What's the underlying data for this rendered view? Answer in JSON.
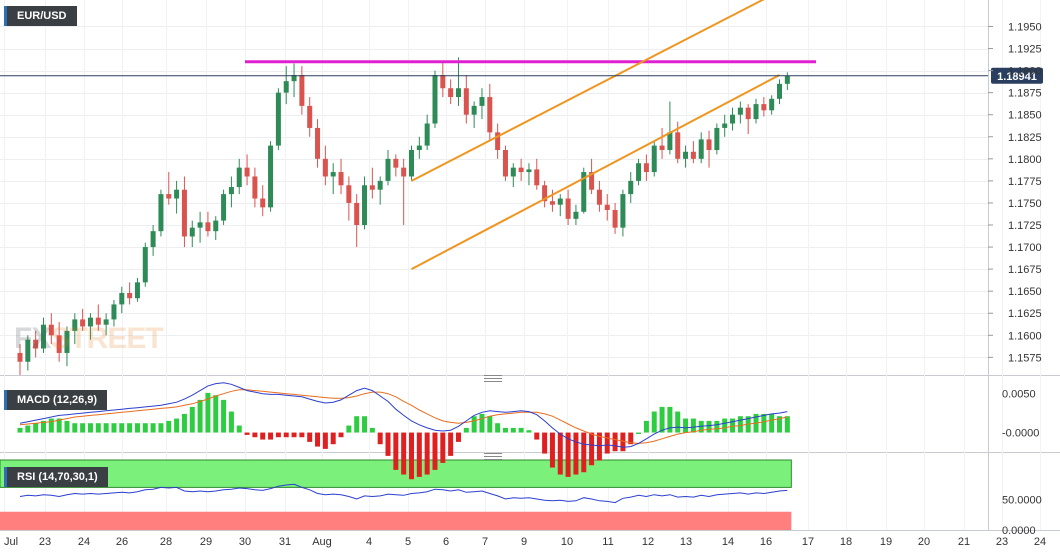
{
  "chart_data": [
    {
      "type": "candlestick",
      "title": "EUR/USD",
      "x_tick_labels": [
        "Jul",
        "23",
        "24",
        "26",
        "28",
        "29",
        "30",
        "31",
        "Aug",
        "4",
        "5",
        "6",
        "7",
        "9",
        "10",
        "11",
        "12",
        "13",
        "14",
        "16",
        "17",
        "18",
        "19",
        "20",
        "21",
        "23",
        "24"
      ],
      "y_ticks": [
        "1.1950",
        "1.1925",
        "1.1900",
        "1.1875",
        "1.1850",
        "1.1825",
        "1.1800",
        "1.1775",
        "1.1750",
        "1.1725",
        "1.1700",
        "1.1675",
        "1.1650",
        "1.1625",
        "1.1600",
        "1.1575"
      ],
      "ylim": [
        1.1555,
        1.198
      ],
      "last_price": "1.18941",
      "last_price_value": 1.18941,
      "grid": true,
      "colors": {
        "up": "#2e8b57",
        "down": "#d9534f",
        "resistance": "#e020d0",
        "channel": "#f0951f",
        "last_price_line": "#2a3f5f",
        "last_price_badge": "#2a3f5f"
      },
      "ohlc": [
        [
          1.158,
          1.159,
          1.1555,
          1.157
        ],
        [
          1.157,
          1.16,
          1.156,
          1.1595
        ],
        [
          1.1595,
          1.1605,
          1.1575,
          1.1585
        ],
        [
          1.1585,
          1.162,
          1.158,
          1.1612
        ],
        [
          1.1612,
          1.1625,
          1.159,
          1.16
        ],
        [
          1.16,
          1.1615,
          1.157,
          1.158
        ],
        [
          1.158,
          1.161,
          1.1565,
          1.1605
        ],
        [
          1.1605,
          1.1625,
          1.159,
          1.1618
        ],
        [
          1.1618,
          1.163,
          1.1605,
          1.161
        ],
        [
          1.161,
          1.1625,
          1.1595,
          1.162
        ],
        [
          1.162,
          1.1635,
          1.1605,
          1.1612
        ],
        [
          1.1612,
          1.1625,
          1.16,
          1.1618
        ],
        [
          1.1618,
          1.164,
          1.161,
          1.1635
        ],
        [
          1.1635,
          1.1655,
          1.1625,
          1.1648
        ],
        [
          1.1648,
          1.166,
          1.1635,
          1.1642
        ],
        [
          1.1642,
          1.1665,
          1.1638,
          1.166
        ],
        [
          1.166,
          1.1705,
          1.1655,
          1.17
        ],
        [
          1.17,
          1.1725,
          1.169,
          1.1718
        ],
        [
          1.1718,
          1.1765,
          1.1712,
          1.176
        ],
        [
          1.176,
          1.1785,
          1.1748,
          1.1755
        ],
        [
          1.1755,
          1.1775,
          1.1738,
          1.1765
        ],
        [
          1.1765,
          1.178,
          1.17,
          1.1712
        ],
        [
          1.1712,
          1.173,
          1.17,
          1.1722
        ],
        [
          1.1722,
          1.174,
          1.1705,
          1.1728
        ],
        [
          1.1728,
          1.174,
          1.1712,
          1.1718
        ],
        [
          1.1718,
          1.1735,
          1.1708,
          1.173
        ],
        [
          1.173,
          1.1765,
          1.1725,
          1.176
        ],
        [
          1.176,
          1.178,
          1.1745,
          1.1768
        ],
        [
          1.1768,
          1.18,
          1.176,
          1.179
        ],
        [
          1.179,
          1.1805,
          1.177,
          1.178
        ],
        [
          1.178,
          1.179,
          1.1745,
          1.1755
        ],
        [
          1.1755,
          1.177,
          1.1735,
          1.1745
        ],
        [
          1.1745,
          1.182,
          1.174,
          1.1815
        ],
        [
          1.1815,
          1.188,
          1.181,
          1.1875
        ],
        [
          1.1875,
          1.1905,
          1.1862,
          1.1888
        ],
        [
          1.1888,
          1.1908,
          1.187,
          1.1895
        ],
        [
          1.1895,
          1.1905,
          1.185,
          1.186
        ],
        [
          1.186,
          1.187,
          1.1825,
          1.1835
        ],
        [
          1.1835,
          1.1845,
          1.179,
          1.18
        ],
        [
          1.18,
          1.1815,
          1.177,
          1.178
        ],
        [
          1.178,
          1.1795,
          1.176,
          1.1785
        ],
        [
          1.1785,
          1.18,
          1.176,
          1.177
        ],
        [
          1.177,
          1.178,
          1.173,
          1.175
        ],
        [
          1.175,
          1.176,
          1.17,
          1.1725
        ],
        [
          1.1725,
          1.178,
          1.172,
          1.177
        ],
        [
          1.177,
          1.179,
          1.1755,
          1.1765
        ],
        [
          1.1765,
          1.178,
          1.1748,
          1.1775
        ],
        [
          1.1775,
          1.181,
          1.177,
          1.18
        ],
        [
          1.18,
          1.1805,
          1.178,
          1.179
        ],
        [
          1.179,
          1.18,
          1.1725,
          1.178
        ],
        [
          1.178,
          1.1815,
          1.1775,
          1.181
        ],
        [
          1.181,
          1.1825,
          1.18,
          1.1815
        ],
        [
          1.1815,
          1.185,
          1.181,
          1.184
        ],
        [
          1.184,
          1.19,
          1.1835,
          1.1895
        ],
        [
          1.1895,
          1.191,
          1.187,
          1.188
        ],
        [
          1.188,
          1.189,
          1.1862,
          1.187
        ],
        [
          1.187,
          1.1915,
          1.186,
          1.188
        ],
        [
          1.188,
          1.1895,
          1.184,
          1.185
        ],
        [
          1.185,
          1.1865,
          1.1835,
          1.186
        ],
        [
          1.186,
          1.188,
          1.1845,
          1.187
        ],
        [
          1.187,
          1.1885,
          1.182,
          1.183
        ],
        [
          1.183,
          1.184,
          1.18,
          1.181
        ],
        [
          1.181,
          1.1815,
          1.1775,
          1.178
        ],
        [
          1.178,
          1.1795,
          1.1768,
          1.179
        ],
        [
          1.179,
          1.18,
          1.1775,
          1.1785
        ],
        [
          1.1785,
          1.1795,
          1.177,
          1.1788
        ],
        [
          1.1788,
          1.18,
          1.1765,
          1.177
        ],
        [
          1.177,
          1.1775,
          1.1745,
          1.1752
        ],
        [
          1.1752,
          1.1765,
          1.174,
          1.1748
        ],
        [
          1.1748,
          1.176,
          1.1735,
          1.1755
        ],
        [
          1.1755,
          1.1765,
          1.1725,
          1.1732
        ],
        [
          1.1732,
          1.1748,
          1.1725,
          1.174
        ],
        [
          1.174,
          1.179,
          1.1738,
          1.1785
        ],
        [
          1.1785,
          1.18,
          1.176,
          1.1765
        ],
        [
          1.1765,
          1.1775,
          1.174,
          1.1748
        ],
        [
          1.1748,
          1.176,
          1.173,
          1.1742
        ],
        [
          1.1742,
          1.175,
          1.1715,
          1.1722
        ],
        [
          1.1722,
          1.1765,
          1.1712,
          1.176
        ],
        [
          1.176,
          1.1785,
          1.175,
          1.1775
        ],
        [
          1.1775,
          1.18,
          1.177,
          1.1795
        ],
        [
          1.1795,
          1.1805,
          1.1775,
          1.1785
        ],
        [
          1.1785,
          1.182,
          1.178,
          1.1815
        ],
        [
          1.1815,
          1.1835,
          1.18,
          1.181
        ],
        [
          1.181,
          1.1865,
          1.1805,
          1.183
        ],
        [
          1.183,
          1.1842,
          1.1795,
          1.18
        ],
        [
          1.18,
          1.1815,
          1.179,
          1.1808
        ],
        [
          1.1808,
          1.182,
          1.1795,
          1.18
        ],
        [
          1.18,
          1.183,
          1.1795,
          1.1822
        ],
        [
          1.1822,
          1.1832,
          1.179,
          1.181
        ],
        [
          1.181,
          1.184,
          1.1805,
          1.1835
        ],
        [
          1.1835,
          1.185,
          1.1825,
          1.184
        ],
        [
          1.184,
          1.1858,
          1.1832,
          1.185
        ],
        [
          1.185,
          1.1865,
          1.184,
          1.1858
        ],
        [
          1.1858,
          1.1862,
          1.1828,
          1.1845
        ],
        [
          1.1845,
          1.1868,
          1.184,
          1.1862
        ],
        [
          1.1862,
          1.187,
          1.1848,
          1.1855
        ],
        [
          1.1855,
          1.1872,
          1.185,
          1.1868
        ],
        [
          1.1868,
          1.189,
          1.1862,
          1.1885
        ],
        [
          1.1885,
          1.1898,
          1.1878,
          1.1894
        ]
      ],
      "resistance_level": 1.191,
      "channel_upper": [
        [
          50,
          1.1775
        ],
        [
          97,
          1.199
        ]
      ],
      "channel_lower": [
        [
          50,
          1.1675
        ],
        [
          97,
          1.1895
        ]
      ],
      "x_overlay_end": 120
    },
    {
      "type": "macd",
      "title": "MACD (12,26,9)",
      "y_ticks": [
        "0.0050",
        "-0.0000"
      ],
      "ylim": [
        -0.0025,
        0.0065
      ],
      "colors": {
        "macd": "#2b3fcf",
        "signal": "#e86d1f",
        "hist_up": "#2ecc40",
        "hist_down": "#e02020"
      },
      "macd": [
        0.0012,
        0.0014,
        0.0016,
        0.0018,
        0.002,
        0.0022,
        0.0023,
        0.0024,
        0.0025,
        0.0026,
        0.0027,
        0.0028,
        0.0029,
        0.003,
        0.0031,
        0.0032,
        0.0033,
        0.0034,
        0.0035,
        0.0037,
        0.0039,
        0.0043,
        0.0048,
        0.0054,
        0.006,
        0.0063,
        0.0064,
        0.0062,
        0.0058,
        0.0054,
        0.0052,
        0.005,
        0.0049,
        0.0049,
        0.0048,
        0.0047,
        0.0046,
        0.0043,
        0.004,
        0.0038,
        0.0039,
        0.0042,
        0.0048,
        0.0054,
        0.0057,
        0.0054,
        0.0047,
        0.004,
        0.003,
        0.0022,
        0.0015,
        0.001,
        0.0006,
        0.0003,
        0.0002,
        0.0003,
        0.0008,
        0.0015,
        0.0022,
        0.0026,
        0.0028,
        0.0027,
        0.0026,
        0.0027,
        0.0028,
        0.0027,
        0.0023,
        0.0015,
        0.0006,
        -0.0002,
        -0.0008,
        -0.0012,
        -0.0015,
        -0.0016,
        -0.0017,
        -0.0016,
        -0.0017,
        -0.0019,
        -0.0018,
        -0.0014,
        -0.0008,
        -0.0002,
        0.0003,
        0.0006,
        0.0007,
        0.0006,
        0.0007,
        0.0008,
        0.0009,
        0.001,
        0.0012,
        0.0014,
        0.0016,
        0.0018,
        0.002,
        0.0022,
        0.0024,
        0.0025,
        0.0027
      ],
      "signal": [
        0.001,
        0.0011,
        0.0012,
        0.0013,
        0.0014,
        0.0016,
        0.0018,
        0.002,
        0.0021,
        0.0022,
        0.0023,
        0.0024,
        0.0025,
        0.0026,
        0.0027,
        0.0028,
        0.0029,
        0.003,
        0.0031,
        0.0032,
        0.0033,
        0.0035,
        0.0037,
        0.004,
        0.0043,
        0.0047,
        0.005,
        0.0053,
        0.0055,
        0.0055,
        0.0054,
        0.0053,
        0.0052,
        0.0051,
        0.005,
        0.0049,
        0.0048,
        0.0047,
        0.0046,
        0.0045,
        0.0044,
        0.0044,
        0.0045,
        0.0047,
        0.005,
        0.0052,
        0.0052,
        0.005,
        0.0046,
        0.004,
        0.0035,
        0.0029,
        0.0024,
        0.0019,
        0.0015,
        0.0013,
        0.0012,
        0.0013,
        0.0015,
        0.0018,
        0.0021,
        0.0023,
        0.0024,
        0.0025,
        0.0026,
        0.0026,
        0.0026,
        0.0024,
        0.0021,
        0.0016,
        0.0011,
        0.0006,
        0.0002,
        -0.0002,
        -0.0005,
        -0.0007,
        -0.0009,
        -0.0011,
        -0.0013,
        -0.0014,
        -0.0013,
        -0.0011,
        -0.0008,
        -0.0005,
        -0.0002,
        0.0,
        0.0001,
        0.0003,
        0.0004,
        0.0005,
        0.0006,
        0.0008,
        0.0009,
        0.0011,
        0.0012,
        0.0014,
        0.0016,
        0.0018,
        0.002
      ]
    },
    {
      "type": "rsi",
      "title": "RSI (14,70,30,1)",
      "y_ticks": [
        "50.0000",
        "0.0000"
      ],
      "ylim": [
        0,
        115
      ],
      "overbought": 70,
      "oversold": 30,
      "colors": {
        "line": "#2b3fcf",
        "overbought_fill": "#7bf07b",
        "oversold_fill": "#ff7f7f"
      },
      "values": [
        55,
        57,
        56,
        58,
        57,
        55,
        58,
        60,
        59,
        60,
        59,
        60,
        61,
        62,
        61,
        63,
        66,
        67,
        70,
        69,
        70,
        64,
        63,
        64,
        63,
        64,
        66,
        67,
        69,
        68,
        66,
        65,
        68,
        72,
        74,
        75,
        70,
        66,
        60,
        58,
        59,
        58,
        55,
        51,
        56,
        55,
        56,
        59,
        58,
        57,
        60,
        61,
        63,
        67,
        66,
        64,
        66,
        62,
        63,
        64,
        60,
        56,
        51,
        53,
        52,
        53,
        51,
        49,
        48,
        49,
        47,
        48,
        53,
        51,
        48,
        47,
        45,
        52,
        54,
        57,
        55,
        58,
        56,
        58,
        54,
        55,
        54,
        57,
        55,
        58,
        59,
        60,
        61,
        59,
        61,
        60,
        62,
        64,
        65
      ]
    }
  ]
}
